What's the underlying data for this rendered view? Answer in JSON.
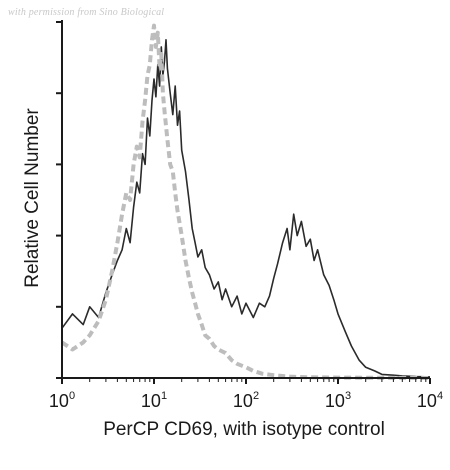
{
  "watermark": "with permission from Sino Biological",
  "chart_data": {
    "type": "line",
    "title": "",
    "xlabel": "PerCP CD69, with isotype control",
    "ylabel": "Relative Cell Number",
    "x_scale": "log",
    "xlim": [
      1,
      10000
    ],
    "ylim": [
      0,
      1
    ],
    "x_ticks": [
      {
        "value": 1,
        "base": "10",
        "exp": "0"
      },
      {
        "value": 10,
        "base": "10",
        "exp": "1"
      },
      {
        "value": 100,
        "base": "10",
        "exp": "2"
      },
      {
        "value": 1000,
        "base": "10",
        "exp": "3"
      },
      {
        "value": 10000,
        "base": "10",
        "exp": "4"
      }
    ],
    "y_ticks": [
      0,
      0.2,
      0.4,
      0.6,
      0.8,
      1.0
    ],
    "grid": false,
    "legend": "none",
    "colors": {
      "sample": "#2b2b2b",
      "isotype": "#bdbdbd"
    },
    "series": [
      {
        "style": "solid",
        "color": "#2b2b2b",
        "x": [
          1,
          1.3,
          1.7,
          2,
          2.5,
          3,
          3.5,
          4,
          4.5,
          5,
          5.5,
          6,
          6.5,
          7,
          7.5,
          8,
          8.5,
          9,
          9.5,
          10,
          10.5,
          11,
          11.5,
          12,
          12.5,
          13,
          13.5,
          14,
          15,
          16,
          17,
          18,
          19,
          20,
          22,
          24,
          26,
          28,
          30,
          33,
          36,
          40,
          45,
          50,
          55,
          60,
          70,
          80,
          90,
          100,
          120,
          140,
          160,
          180,
          200,
          220,
          250,
          280,
          300,
          330,
          360,
          400,
          450,
          500,
          550,
          600,
          700,
          800,
          900,
          1000,
          1200,
          1400,
          1700,
          2000,
          2500,
          3000,
          4000,
          5000,
          7000,
          10000
        ],
        "y": [
          0.14,
          0.18,
          0.15,
          0.2,
          0.17,
          0.24,
          0.29,
          0.33,
          0.36,
          0.42,
          0.38,
          0.48,
          0.55,
          0.52,
          0.63,
          0.6,
          0.73,
          0.68,
          0.78,
          0.84,
          0.79,
          0.88,
          0.82,
          0.93,
          0.85,
          0.89,
          0.95,
          0.87,
          0.8,
          0.74,
          0.82,
          0.71,
          0.75,
          0.64,
          0.58,
          0.5,
          0.42,
          0.38,
          0.34,
          0.36,
          0.31,
          0.29,
          0.25,
          0.27,
          0.22,
          0.25,
          0.2,
          0.23,
          0.18,
          0.21,
          0.17,
          0.21,
          0.2,
          0.23,
          0.28,
          0.32,
          0.38,
          0.42,
          0.36,
          0.46,
          0.4,
          0.44,
          0.37,
          0.39,
          0.33,
          0.36,
          0.29,
          0.26,
          0.22,
          0.18,
          0.13,
          0.09,
          0.05,
          0.03,
          0.02,
          0.01,
          0.008,
          0.006,
          0.004,
          0.003
        ]
      },
      {
        "style": "dashed",
        "color": "#bdbdbd",
        "x": [
          1,
          1.3,
          1.7,
          2,
          2.5,
          3,
          3.5,
          4,
          4.5,
          5,
          5.5,
          6,
          6.5,
          7,
          7.5,
          8,
          8.5,
          9,
          9.5,
          10,
          10.5,
          11,
          11.5,
          12,
          12.5,
          13,
          14,
          15,
          16,
          17,
          18,
          20,
          22,
          24,
          26,
          28,
          30,
          33,
          36,
          40,
          45,
          50,
          60,
          70,
          80,
          100,
          120,
          150,
          200,
          300,
          500,
          1000,
          10000
        ],
        "y": [
          0.1,
          0.08,
          0.1,
          0.12,
          0.16,
          0.22,
          0.3,
          0.38,
          0.46,
          0.52,
          0.5,
          0.6,
          0.65,
          0.62,
          0.72,
          0.78,
          0.85,
          0.88,
          0.95,
          0.99,
          0.93,
          0.97,
          0.87,
          0.91,
          0.8,
          0.75,
          0.67,
          0.6,
          0.58,
          0.52,
          0.47,
          0.4,
          0.33,
          0.28,
          0.24,
          0.21,
          0.18,
          0.15,
          0.12,
          0.11,
          0.09,
          0.08,
          0.07,
          0.05,
          0.04,
          0.03,
          0.02,
          0.012,
          0.008,
          0.004,
          0.002,
          0.001,
          0.0
        ]
      }
    ]
  }
}
